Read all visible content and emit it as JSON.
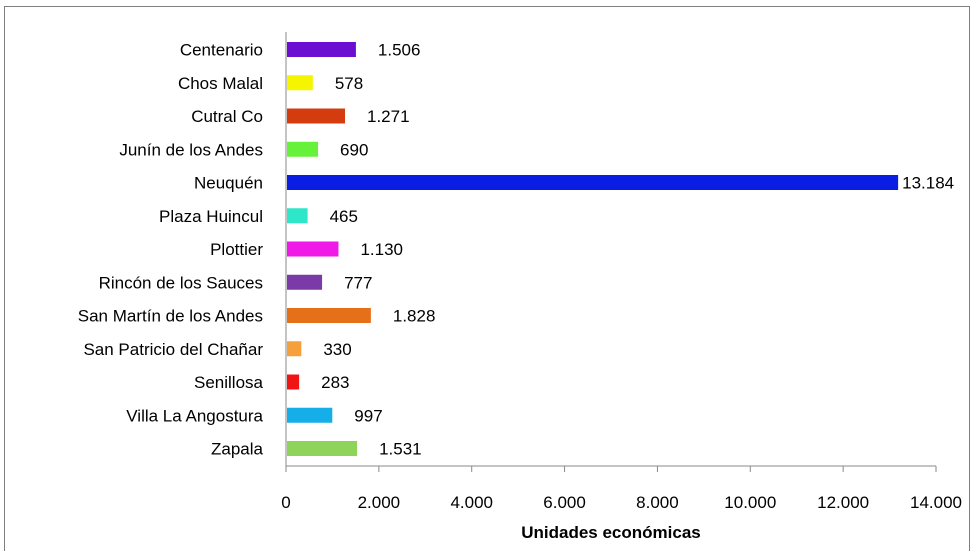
{
  "chart_data": {
    "type": "bar",
    "orientation": "horizontal",
    "title": "",
    "xlabel": "Unidades económicas",
    "ylabel": "",
    "xlim": [
      0,
      14000
    ],
    "x_ticks": [
      0,
      2000,
      4000,
      6000,
      8000,
      10000,
      12000,
      14000
    ],
    "x_tick_labels": [
      "0",
      "2.000",
      "4.000",
      "6.000",
      "8.000",
      "10.000",
      "12.000",
      "14.000"
    ],
    "grid": false,
    "legend": "none",
    "categories": [
      "Centenario",
      "Chos Malal",
      "Cutral Co",
      "Junín de los Andes",
      "Neuquén",
      "Plaza Huincul",
      "Plottier",
      "Rincón de los Sauces",
      "San Martín de los Andes",
      "San Patricio del Chañar",
      "Senillosa",
      "Villa La Angostura",
      "Zapala"
    ],
    "values": [
      1506,
      578,
      1271,
      690,
      13184,
      465,
      1130,
      777,
      1828,
      330,
      283,
      997,
      1531
    ],
    "value_labels": [
      "1.506",
      "578",
      "1.271",
      "690",
      "13.184",
      "465",
      "1.130",
      "777",
      "1.828",
      "330",
      "283",
      "997",
      "1.531"
    ],
    "colors": [
      "#6a0fd1",
      "#f5f500",
      "#d43c10",
      "#66f23a",
      "#0a1de3",
      "#2ee6c8",
      "#f01ae8",
      "#7a3aa8",
      "#e6701a",
      "#f5a03a",
      "#f01414",
      "#16aee8",
      "#8ed45a"
    ]
  }
}
